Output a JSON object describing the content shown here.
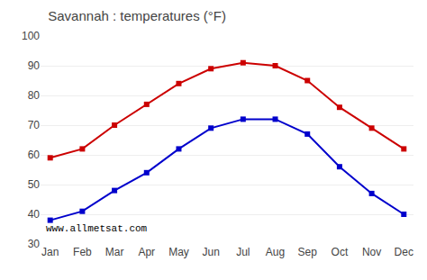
{
  "chart_data": {
    "type": "line",
    "title": "Savannah : temperatures (°F)",
    "categories": [
      "Jan",
      "Feb",
      "Mar",
      "Apr",
      "May",
      "Jun",
      "Jul",
      "Aug",
      "Sep",
      "Oct",
      "Nov",
      "Dec"
    ],
    "series": [
      {
        "color": "#cc0000",
        "marker": "square",
        "values": [
          59,
          62,
          70,
          77,
          84,
          89,
          91,
          90,
          85,
          76,
          69,
          62
        ]
      },
      {
        "color": "#0000cc",
        "marker": "square",
        "values": [
          38,
          41,
          48,
          54,
          62,
          69,
          72,
          72,
          67,
          56,
          47,
          40
        ]
      }
    ],
    "ylim": [
      30,
      100
    ],
    "yticks": [
      30,
      40,
      50,
      60,
      70,
      80,
      90,
      100
    ],
    "grid": "y",
    "annotations": [
      "www.allmetsat.com"
    ]
  }
}
